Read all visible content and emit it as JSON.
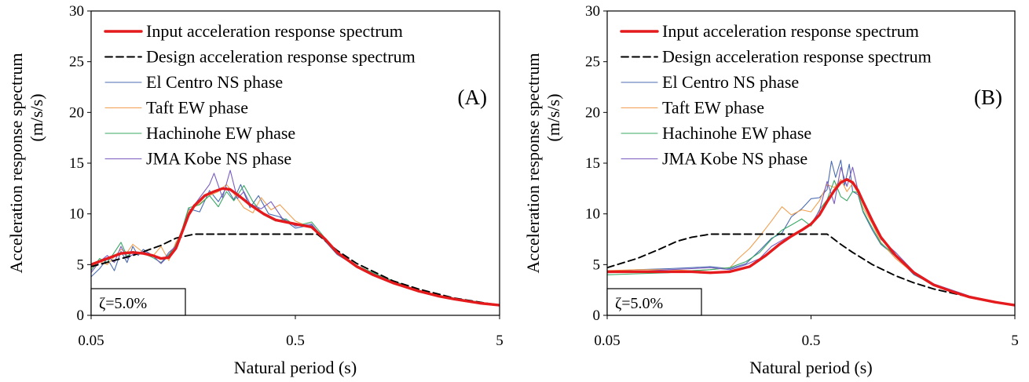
{
  "chart_data": [
    {
      "type": "line",
      "panel_label": "(A)",
      "xlabel": "Natural period (s)",
      "ylabel_line1": "Acceleration response spectrum",
      "ylabel_line2": "(m/s/s)",
      "x_scale": "log",
      "xlim": [
        0.05,
        5
      ],
      "ylim": [
        0,
        30
      ],
      "x_ticks": [
        "0.05",
        "0.5",
        "5"
      ],
      "y_ticks": [
        "0",
        "5",
        "10",
        "15",
        "20",
        "25",
        "30"
      ],
      "damping_label": "ζ=5.0%",
      "legend_position": "top-right",
      "grid": false,
      "series": [
        {
          "name": "Input acceleration response spectrum",
          "color": "#e41a1c",
          "style": "thick",
          "x": [
            0.05,
            0.06,
            0.07,
            0.08,
            0.09,
            0.1,
            0.11,
            0.12,
            0.13,
            0.14,
            0.15,
            0.16,
            0.17,
            0.18,
            0.2,
            0.22,
            0.24,
            0.26,
            0.28,
            0.3,
            0.35,
            0.4,
            0.5,
            0.6,
            0.7,
            0.8,
            1,
            1.2,
            1.5,
            2,
            2.5,
            3,
            4,
            5
          ],
          "y": [
            5.0,
            5.6,
            6.1,
            6.2,
            6.1,
            5.9,
            5.6,
            5.7,
            6.6,
            8.3,
            9.9,
            10.8,
            11.3,
            11.8,
            12.2,
            12.5,
            12.4,
            11.9,
            11.4,
            10.9,
            10.0,
            9.4,
            9.0,
            8.7,
            7.5,
            6.2,
            4.8,
            4.0,
            3.2,
            2.4,
            1.9,
            1.6,
            1.2,
            1.0
          ]
        },
        {
          "name": "Design acceleration response spectrum",
          "color": "#000000",
          "style": "dash",
          "x": [
            0.05,
            0.08,
            0.11,
            0.13,
            0.16,
            0.2,
            0.3,
            0.4,
            0.5,
            0.6,
            0.64,
            0.8,
            1,
            1.5,
            2,
            3,
            4,
            5
          ],
          "y": [
            4.8,
            5.9,
            6.9,
            7.6,
            8.0,
            8.0,
            8.0,
            8.0,
            8.0,
            8.0,
            8.0,
            6.4,
            5.1,
            3.4,
            2.6,
            1.7,
            1.3,
            1.0
          ]
        },
        {
          "name": "El Centro NS phase",
          "color": "#4a6bb0",
          "style": "thin",
          "x": [
            0.05,
            0.055,
            0.06,
            0.065,
            0.07,
            0.075,
            0.08,
            0.085,
            0.09,
            0.1,
            0.11,
            0.12,
            0.13,
            0.14,
            0.15,
            0.17,
            0.19,
            0.21,
            0.23,
            0.25,
            0.27,
            0.3,
            0.33,
            0.37,
            0.42,
            0.5,
            0.6,
            0.7,
            0.8,
            1,
            1.3,
            1.6,
            2,
            3,
            4,
            5
          ],
          "y": [
            3.8,
            4.6,
            5.6,
            4.4,
            6.3,
            5.2,
            6.8,
            5.9,
            6.5,
            5.9,
            5.1,
            5.9,
            7.0,
            8.5,
            10.5,
            10.2,
            12.3,
            11.2,
            12.6,
            11.4,
            12.9,
            10.6,
            11.8,
            10.0,
            9.7,
            8.6,
            8.9,
            7.3,
            6.0,
            4.8,
            3.9,
            3.2,
            2.4,
            1.6,
            1.2,
            1.0
          ]
        },
        {
          "name": "Taft EW phase",
          "color": "#f0a050",
          "style": "thin",
          "x": [
            0.05,
            0.055,
            0.06,
            0.07,
            0.075,
            0.08,
            0.09,
            0.1,
            0.11,
            0.12,
            0.13,
            0.14,
            0.15,
            0.17,
            0.19,
            0.21,
            0.23,
            0.25,
            0.28,
            0.31,
            0.34,
            0.38,
            0.42,
            0.5,
            0.6,
            0.7,
            0.8,
            1,
            1.3,
            1.6,
            2,
            3,
            4,
            5
          ],
          "y": [
            4.5,
            5.3,
            5.0,
            6.5,
            6.2,
            7.0,
            6.2,
            5.8,
            6.8,
            5.4,
            7.2,
            8.2,
            10.3,
            11.0,
            11.8,
            12.2,
            12.9,
            12.0,
            10.6,
            10.1,
            11.6,
            10.4,
            10.9,
            9.3,
            8.6,
            7.6,
            6.1,
            4.7,
            3.8,
            3.1,
            2.5,
            1.6,
            1.2,
            1.0
          ]
        },
        {
          "name": "Hachinohe EW phase",
          "color": "#3aaa66",
          "style": "thin",
          "x": [
            0.05,
            0.055,
            0.06,
            0.065,
            0.07,
            0.075,
            0.08,
            0.09,
            0.1,
            0.11,
            0.12,
            0.13,
            0.14,
            0.15,
            0.17,
            0.19,
            0.21,
            0.23,
            0.25,
            0.28,
            0.31,
            0.35,
            0.4,
            0.45,
            0.5,
            0.6,
            0.7,
            0.8,
            1,
            1.3,
            1.6,
            2,
            3,
            4,
            5
          ],
          "y": [
            4.4,
            5.6,
            5.2,
            6.2,
            7.2,
            5.8,
            6.3,
            6.1,
            5.7,
            5.2,
            6.0,
            6.9,
            8.6,
            10.6,
            10.9,
            11.8,
            10.7,
            12.2,
            11.3,
            12.8,
            11.2,
            9.9,
            9.3,
            9.5,
            8.8,
            9.2,
            7.6,
            6.3,
            4.9,
            3.9,
            3.2,
            2.3,
            1.7,
            1.3,
            1.0
          ]
        },
        {
          "name": "JMA Kobe NS phase",
          "color": "#7a5cc0",
          "style": "thin",
          "x": [
            0.05,
            0.055,
            0.06,
            0.065,
            0.07,
            0.075,
            0.08,
            0.09,
            0.1,
            0.11,
            0.12,
            0.13,
            0.14,
            0.15,
            0.17,
            0.19,
            0.2,
            0.22,
            0.24,
            0.26,
            0.28,
            0.3,
            0.34,
            0.38,
            0.43,
            0.5,
            0.6,
            0.7,
            0.8,
            1,
            1.3,
            1.6,
            2,
            3,
            4,
            5
          ],
          "y": [
            4.2,
            5.3,
            5.9,
            5.2,
            6.8,
            5.6,
            6.0,
            6.3,
            5.9,
            5.1,
            6.2,
            6.8,
            8.2,
            10.1,
            11.6,
            12.9,
            14.0,
            11.6,
            14.3,
            11.5,
            12.2,
            11.0,
            10.5,
            11.2,
            9.6,
            8.8,
            9.0,
            7.4,
            6.1,
            4.8,
            3.8,
            3.1,
            2.4,
            1.6,
            1.2,
            1.0
          ]
        }
      ]
    },
    {
      "type": "line",
      "panel_label": "(B)",
      "xlabel": "Natural period (s)",
      "ylabel_line1": "Acceleration response spectrum",
      "ylabel_line2": "(m/s/s)",
      "x_scale": "log",
      "xlim": [
        0.05,
        5
      ],
      "ylim": [
        0,
        30
      ],
      "x_ticks": [
        "0.05",
        "0.5",
        "5"
      ],
      "y_ticks": [
        "0",
        "5",
        "10",
        "15",
        "20",
        "25",
        "30"
      ],
      "damping_label": "ζ=5.0%",
      "legend_position": "top-right",
      "grid": false,
      "series": [
        {
          "name": "Input acceleration response spectrum",
          "color": "#e41a1c",
          "style": "thick",
          "x": [
            0.05,
            0.07,
            0.1,
            0.13,
            0.16,
            0.2,
            0.25,
            0.3,
            0.35,
            0.4,
            0.45,
            0.5,
            0.55,
            0.6,
            0.65,
            0.7,
            0.75,
            0.8,
            0.85,
            0.9,
            1,
            1.1,
            1.3,
            1.6,
            2,
            2.5,
            3,
            4,
            5
          ],
          "y": [
            4.3,
            4.3,
            4.3,
            4.3,
            4.2,
            4.3,
            4.8,
            5.9,
            7.0,
            7.8,
            8.4,
            9.0,
            9.9,
            11.2,
            12.3,
            13.1,
            13.4,
            13.1,
            12.3,
            11.2,
            9.3,
            7.7,
            5.9,
            4.2,
            3.0,
            2.3,
            1.8,
            1.3,
            1.0
          ]
        },
        {
          "name": "Design acceleration response spectrum",
          "color": "#000000",
          "style": "dash",
          "x": [
            0.05,
            0.07,
            0.09,
            0.11,
            0.13,
            0.15,
            0.16,
            0.2,
            0.3,
            0.4,
            0.5,
            0.6,
            0.62,
            0.7,
            0.8,
            1,
            1.3,
            1.6,
            2,
            3,
            4,
            5
          ],
          "y": [
            4.7,
            5.6,
            6.5,
            7.3,
            7.7,
            7.9,
            8.0,
            8.0,
            8.0,
            8.0,
            8.0,
            8.0,
            7.8,
            7.0,
            6.2,
            5.0,
            3.9,
            3.2,
            2.6,
            1.8,
            1.3,
            1.0
          ]
        },
        {
          "name": "El Centro NS phase",
          "color": "#4a6bb0",
          "style": "thin",
          "x": [
            0.05,
            0.07,
            0.1,
            0.13,
            0.16,
            0.2,
            0.24,
            0.28,
            0.32,
            0.36,
            0.4,
            0.45,
            0.5,
            0.55,
            0.6,
            0.63,
            0.66,
            0.7,
            0.73,
            0.77,
            0.8,
            0.85,
            0.9,
            1,
            1.1,
            1.3,
            1.6,
            2,
            3,
            4,
            5
          ],
          "y": [
            4.3,
            4.5,
            4.6,
            4.7,
            4.8,
            4.6,
            5.1,
            6.4,
            7.6,
            8.1,
            9.7,
            10.5,
            11.5,
            11.6,
            12.4,
            15.2,
            13.6,
            15.3,
            12.8,
            14.9,
            12.2,
            11.9,
            10.2,
            8.4,
            7.0,
            5.8,
            4.0,
            3.0,
            1.8,
            1.3,
            1.0
          ]
        },
        {
          "name": "Taft EW phase",
          "color": "#f0a050",
          "style": "thin",
          "x": [
            0.05,
            0.07,
            0.1,
            0.13,
            0.16,
            0.2,
            0.22,
            0.25,
            0.28,
            0.32,
            0.36,
            0.4,
            0.45,
            0.5,
            0.55,
            0.6,
            0.65,
            0.7,
            0.75,
            0.8,
            0.85,
            0.9,
            1,
            1.1,
            1.3,
            1.6,
            2,
            3,
            4,
            5
          ],
          "y": [
            4.4,
            4.5,
            4.5,
            4.4,
            4.5,
            4.7,
            5.6,
            6.6,
            7.8,
            9.3,
            10.7,
            9.9,
            10.4,
            10.2,
            11.3,
            12.9,
            12.6,
            13.4,
            12.2,
            13.0,
            12.0,
            10.6,
            9.0,
            7.2,
            5.6,
            4.1,
            3.0,
            1.8,
            1.3,
            1.0
          ]
        },
        {
          "name": "Hachinohe EW phase",
          "color": "#3aaa66",
          "style": "thin",
          "x": [
            0.05,
            0.07,
            0.1,
            0.13,
            0.16,
            0.2,
            0.24,
            0.28,
            0.32,
            0.36,
            0.4,
            0.45,
            0.5,
            0.55,
            0.6,
            0.65,
            0.7,
            0.75,
            0.8,
            0.85,
            0.9,
            1,
            1.1,
            1.3,
            1.6,
            2,
            3,
            4,
            5
          ],
          "y": [
            4.0,
            4.1,
            4.2,
            4.4,
            4.5,
            4.7,
            5.3,
            6.2,
            7.5,
            8.4,
            8.9,
            9.5,
            8.8,
            10.4,
            11.4,
            13.3,
            11.7,
            11.3,
            12.2,
            12.1,
            10.3,
            8.6,
            7.1,
            5.9,
            4.1,
            2.9,
            1.8,
            1.3,
            1.0
          ]
        },
        {
          "name": "JMA Kobe NS phase",
          "color": "#7a5cc0",
          "style": "thin",
          "x": [
            0.05,
            0.07,
            0.1,
            0.13,
            0.16,
            0.2,
            0.24,
            0.28,
            0.32,
            0.36,
            0.4,
            0.45,
            0.5,
            0.55,
            0.6,
            0.65,
            0.7,
            0.75,
            0.8,
            0.85,
            0.9,
            1,
            1.1,
            1.3,
            1.6,
            2,
            3,
            4,
            5
          ],
          "y": [
            4.2,
            4.3,
            4.5,
            4.6,
            4.7,
            4.5,
            5.0,
            5.6,
            6.8,
            7.4,
            7.9,
            8.3,
            9.0,
            10.3,
            13.2,
            11.0,
            14.6,
            12.7,
            14.6,
            12.3,
            11.4,
            9.5,
            7.5,
            6.2,
            4.3,
            3.1,
            1.9,
            1.3,
            1.0
          ]
        }
      ]
    }
  ]
}
